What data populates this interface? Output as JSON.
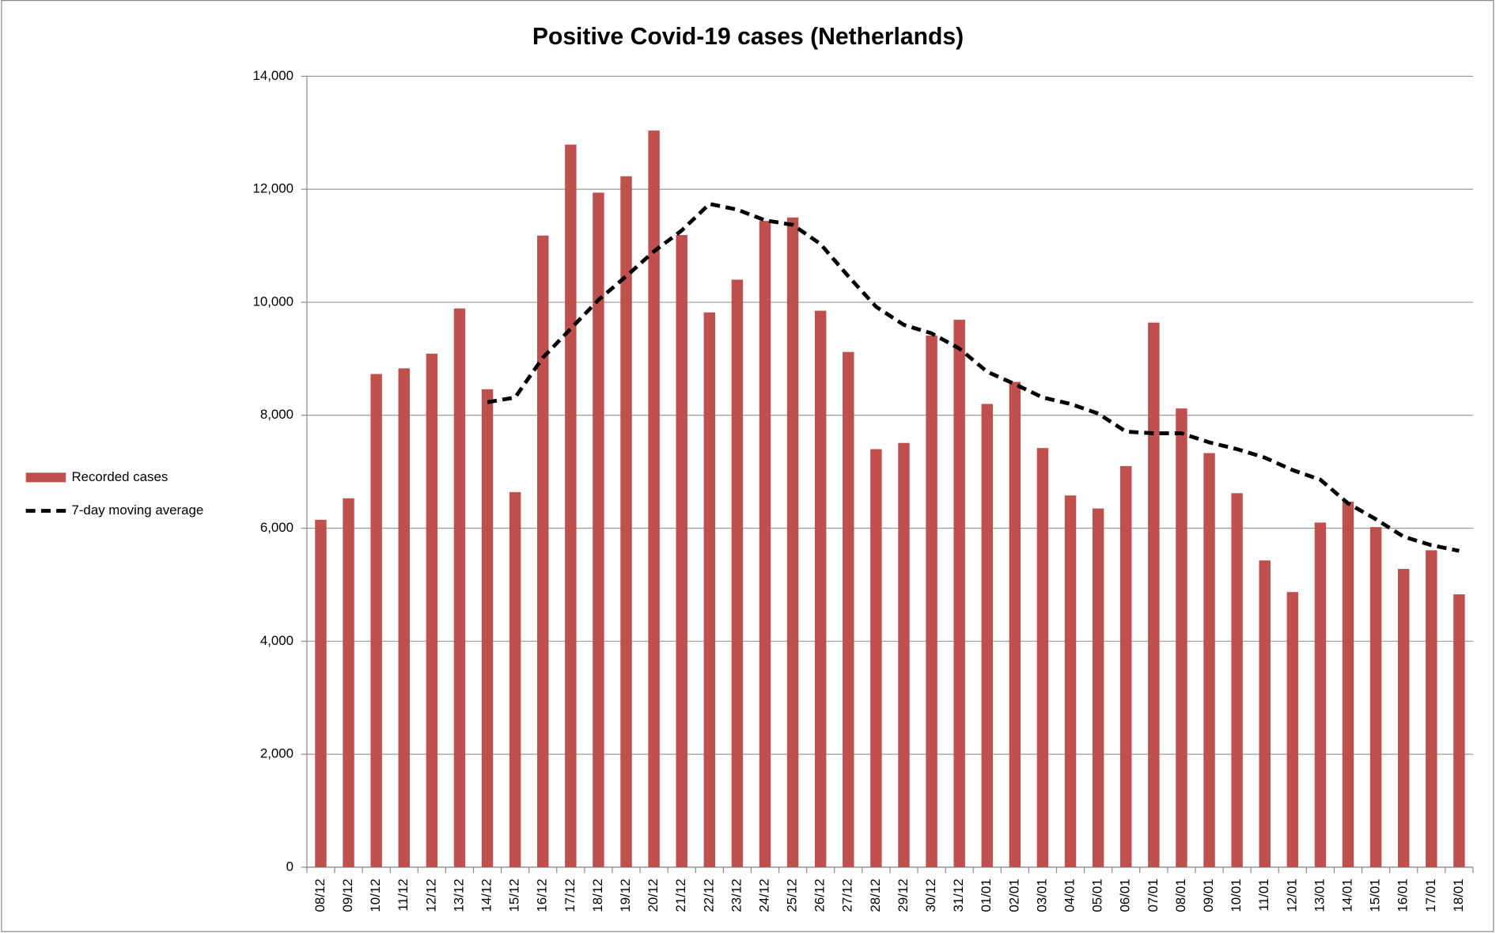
{
  "chart_data": {
    "type": "bar",
    "title": "Positive Covid-19 cases (Netherlands)",
    "categories": [
      "08/12",
      "09/12",
      "10/12",
      "11/12",
      "12/12",
      "13/12",
      "14/12",
      "15/12",
      "16/12",
      "17/12",
      "18/12",
      "19/12",
      "20/12",
      "21/12",
      "22/12",
      "23/12",
      "24/12",
      "25/12",
      "26/12",
      "27/12",
      "28/12",
      "29/12",
      "30/12",
      "31/12",
      "01/01",
      "02/01",
      "03/01",
      "04/01",
      "05/01",
      "06/01",
      "07/01",
      "08/01",
      "09/01",
      "10/01",
      "11/01",
      "12/01",
      "13/01",
      "14/01",
      "15/01",
      "16/01",
      "17/01",
      "18/01"
    ],
    "series": [
      {
        "name": "Recorded cases",
        "color": "#c0504d",
        "values": [
          6150,
          6530,
          8730,
          8830,
          9090,
          9890,
          8460,
          6640,
          11180,
          12790,
          11940,
          12230,
          13040,
          11190,
          9820,
          10400,
          11440,
          11500,
          9850,
          9120,
          7400,
          7510,
          9410,
          9690,
          8200,
          8590,
          7420,
          6580,
          6350,
          7100,
          9640,
          8120,
          7330,
          6620,
          5430,
          4870,
          6100,
          6470,
          6020,
          5280,
          5610,
          4830
        ]
      },
      {
        "name": "7-day moving average",
        "color": "#000000",
        "type": "line",
        "values": [
          null,
          null,
          null,
          null,
          null,
          null,
          8230,
          8315,
          9020,
          9530,
          10040,
          10460,
          10900,
          11270,
          11740,
          11640,
          11450,
          11370,
          11030,
          10460,
          9920,
          9600,
          9450,
          9180,
          8770,
          8550,
          8315,
          8200,
          8030,
          7710,
          7680,
          7680,
          7520,
          7400,
          7250,
          7030,
          6860,
          6440,
          6160,
          5850,
          5700,
          5600
        ]
      }
    ],
    "ylim": [
      0,
      14000
    ],
    "yticks": [
      0,
      {
        "value": 2000,
        "label": "2,000"
      },
      {
        "value": 4000,
        "label": "4,000"
      },
      {
        "value": 6000,
        "label": "6,000"
      },
      {
        "value": 8000,
        "label": "8,000"
      },
      {
        "value": 10000,
        "label": "10,000"
      },
      {
        "value": 12000,
        "label": "12,000"
      },
      {
        "value": 14000,
        "label": "14,000"
      }
    ],
    "grid": true,
    "legend": "left"
  }
}
